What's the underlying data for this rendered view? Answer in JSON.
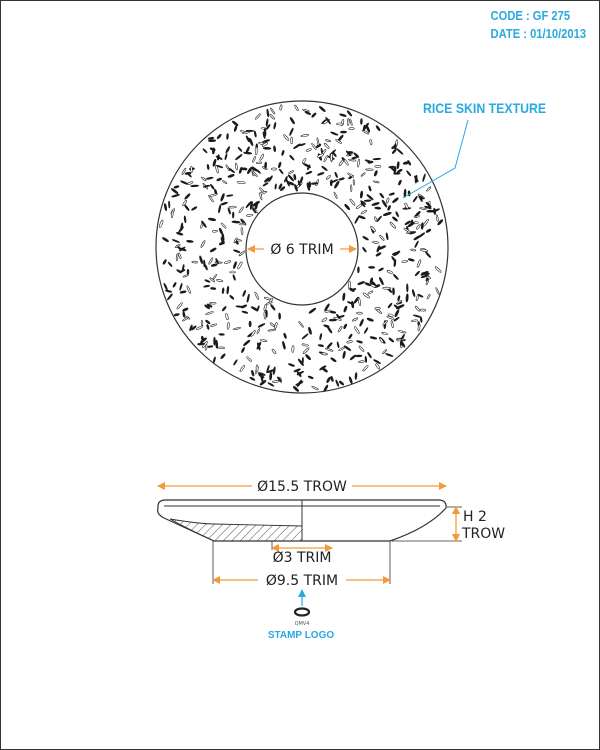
{
  "header": {
    "code": "CODE : GF 275",
    "date": "DATE : 01/10/2013"
  },
  "callouts": {
    "texture": "RICE SKIN TEXTURE",
    "stamp": "STAMP LOGO",
    "stamp_mark": "QMV4"
  },
  "dimensions": {
    "inner_trim": "Ø 6 TRIM",
    "outer_diameter": "Ø15.5 TROW",
    "bottom_trim": "Ø3 TRIM",
    "base_diameter": "Ø9.5 TRIM",
    "height_value": "H 2",
    "height_unit": "TROW"
  },
  "colors": {
    "dimension": "#f39a3a",
    "callout": "#29a9df",
    "line": "#333333"
  }
}
